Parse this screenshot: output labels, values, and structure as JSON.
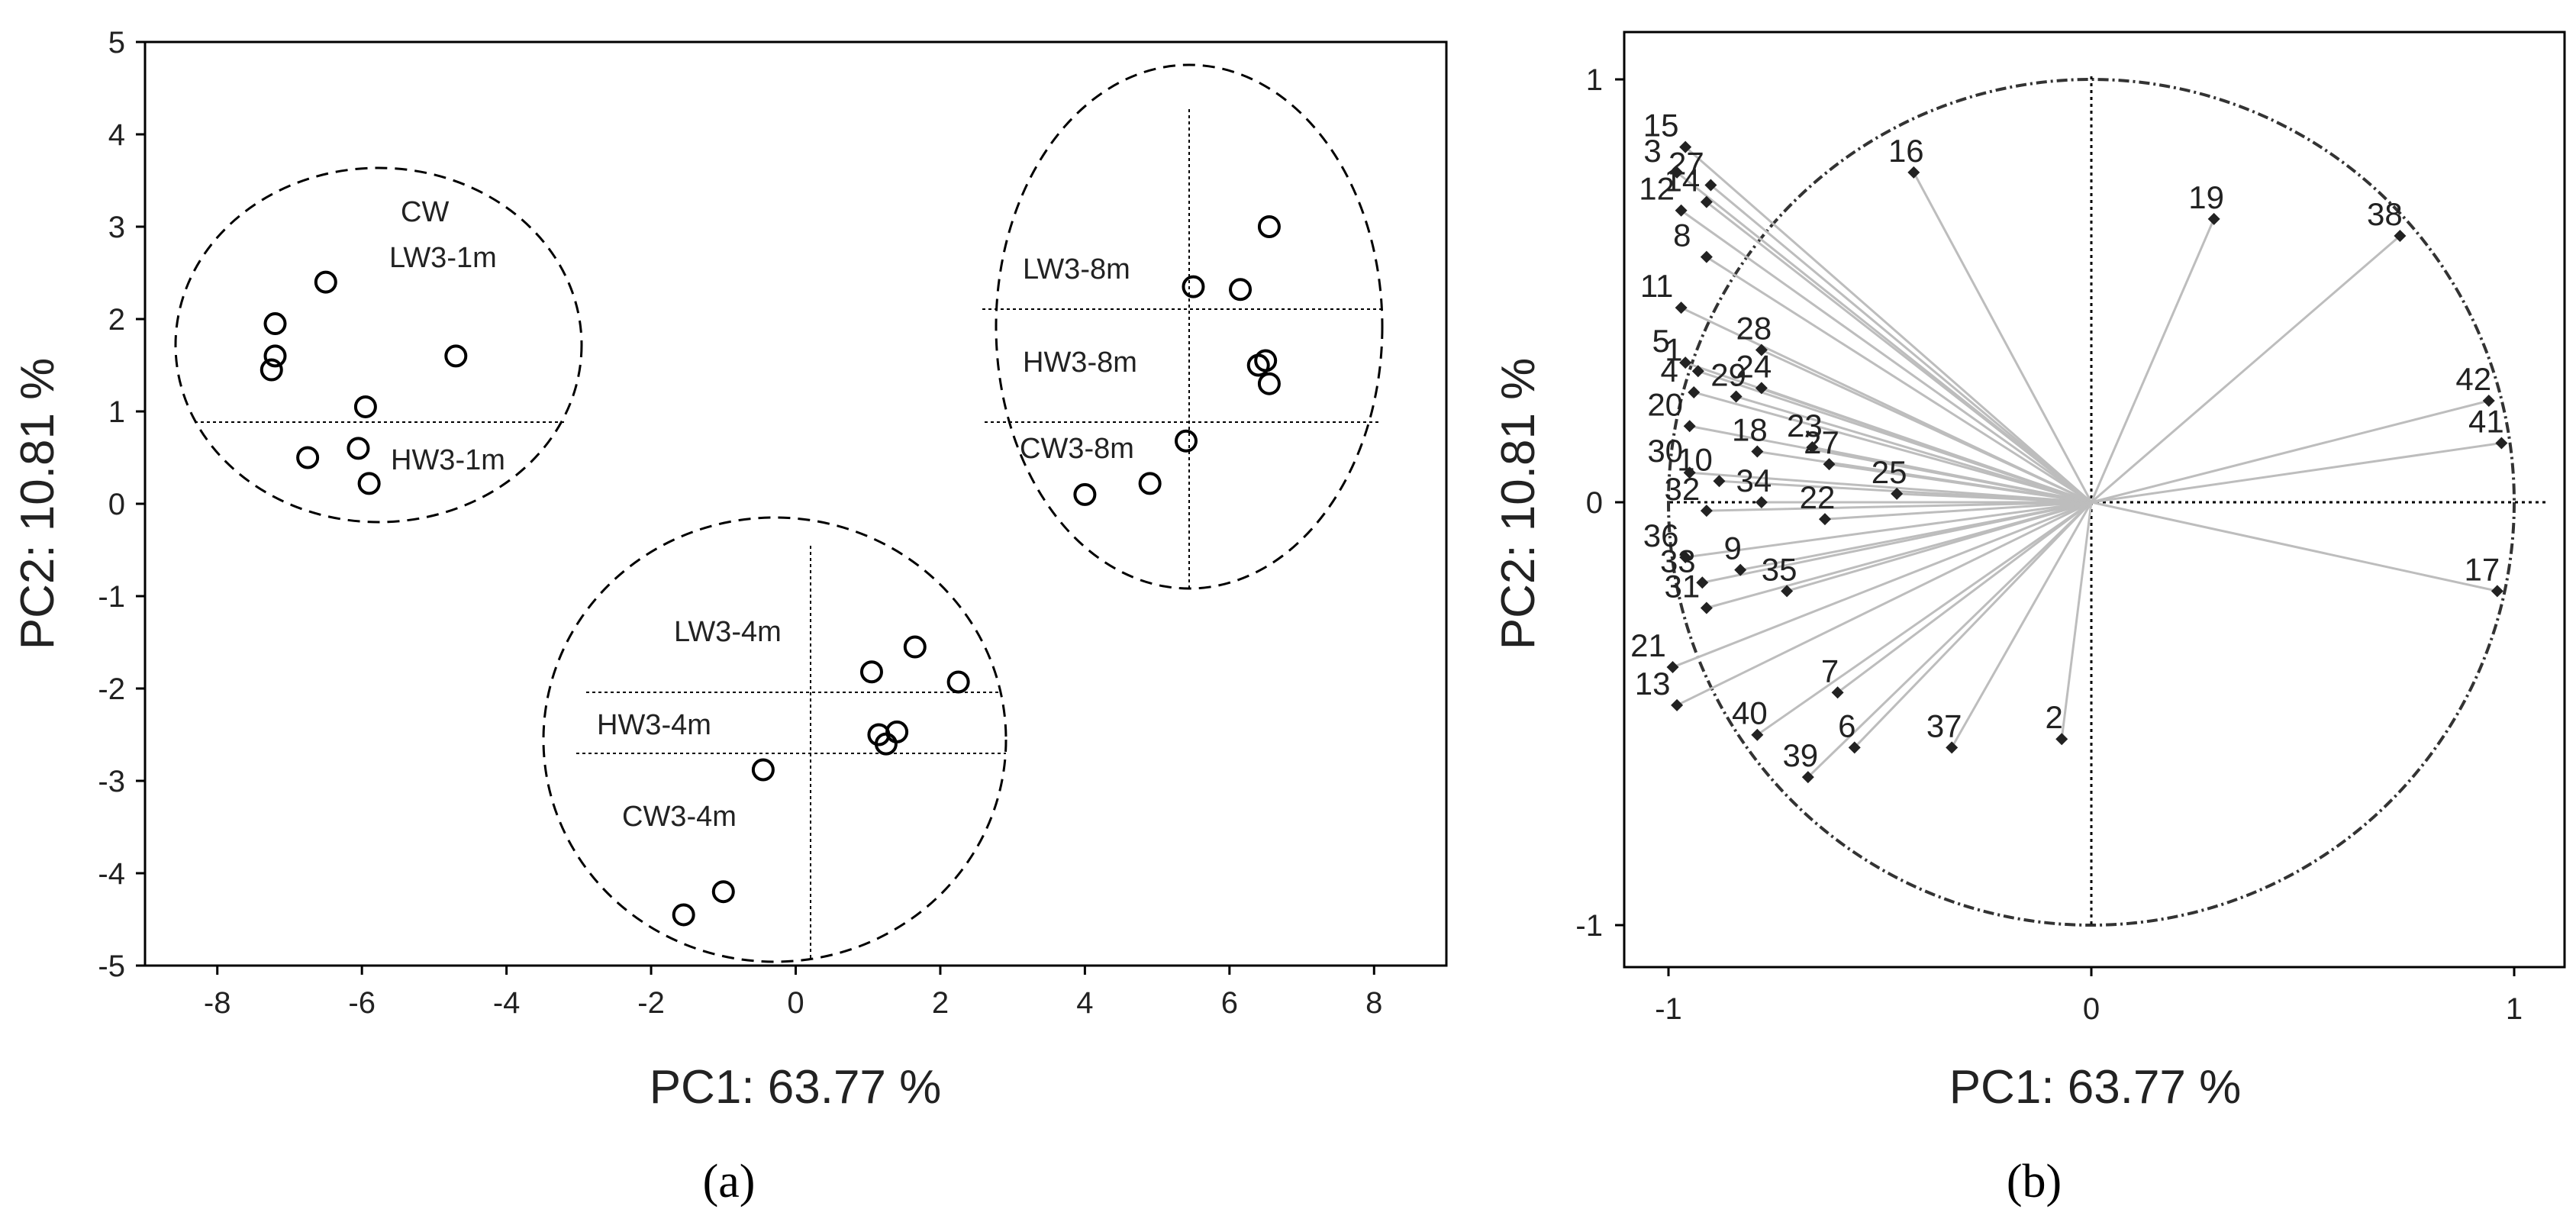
{
  "panels": [
    {
      "id": "a",
      "caption": "(a)",
      "chart_data": {
        "type": "scatter",
        "xlabel": "PC1: 63.77 %",
        "ylabel": "PC2: 10.81 %",
        "xlim": [
          -9,
          9
        ],
        "ylim": [
          -5,
          5
        ],
        "xticks": [
          -8,
          -6,
          -4,
          -2,
          0,
          2,
          4,
          6,
          8
        ],
        "yticks": [
          -5,
          -4,
          -3,
          -2,
          -1,
          0,
          1,
          2,
          3,
          4,
          5
        ],
        "marker": "open-circle",
        "points": [
          [
            -7.2,
            1.95
          ],
          [
            -7.2,
            1.6
          ],
          [
            -7.25,
            1.45
          ],
          [
            -6.5,
            2.4
          ],
          [
            -4.7,
            1.6
          ],
          [
            -5.95,
            1.05
          ],
          [
            -6.75,
            0.5
          ],
          [
            -6.05,
            0.6
          ],
          [
            -5.9,
            0.22
          ],
          [
            5.5,
            2.35
          ],
          [
            6.15,
            2.32
          ],
          [
            6.55,
            3.0
          ],
          [
            6.4,
            1.5
          ],
          [
            6.5,
            1.55
          ],
          [
            6.55,
            1.3
          ],
          [
            5.4,
            0.68
          ],
          [
            4.9,
            0.22
          ],
          [
            4.0,
            0.1
          ],
          [
            1.05,
            -1.82
          ],
          [
            1.65,
            -1.55
          ],
          [
            2.25,
            -1.93
          ],
          [
            1.15,
            -2.5
          ],
          [
            1.25,
            -2.6
          ],
          [
            1.4,
            -2.47
          ],
          [
            -0.45,
            -2.88
          ],
          [
            -1.0,
            -4.2
          ],
          [
            -1.55,
            -4.45
          ]
        ],
        "groups": [
          {
            "labels": [
              "CW",
              "LW3-1m",
              "HW3-1m"
            ]
          },
          {
            "labels": [
              "LW3-8m",
              "HW3-8m",
              "CW3-8m"
            ]
          },
          {
            "labels": [
              "LW3-4m",
              "HW3-4m",
              "CW3-4m"
            ]
          }
        ]
      }
    },
    {
      "id": "b",
      "caption": "(b)",
      "chart_data": {
        "type": "scatter",
        "xlabel": "PC1: 63.77 %",
        "ylabel": "PC2: 10.81 %",
        "xlim": [
          -1.1,
          1.1
        ],
        "ylim": [
          -1.1,
          1.1
        ],
        "xticks": [
          -1,
          0,
          1
        ],
        "yticks": [
          -1,
          0,
          1
        ],
        "marker": "diamond",
        "loadings": [
          {
            "label": "16",
            "x": -0.42,
            "y": 0.78
          },
          {
            "label": "19",
            "x": 0.29,
            "y": 0.67
          },
          {
            "label": "38",
            "x": 0.73,
            "y": 0.63
          },
          {
            "label": "42",
            "x": 0.94,
            "y": 0.24
          },
          {
            "label": "41",
            "x": 0.97,
            "y": 0.14
          },
          {
            "label": "17",
            "x": 0.96,
            "y": -0.21
          },
          {
            "label": "2",
            "x": -0.07,
            "y": -0.56
          },
          {
            "label": "37",
            "x": -0.33,
            "y": -0.58
          },
          {
            "label": "6",
            "x": -0.56,
            "y": -0.58
          },
          {
            "label": "39",
            "x": -0.67,
            "y": -0.65
          },
          {
            "label": "7",
            "x": -0.6,
            "y": -0.45
          },
          {
            "label": "40",
            "x": -0.79,
            "y": -0.55
          },
          {
            "label": "31",
            "x": -0.91,
            "y": -0.25
          },
          {
            "label": "33",
            "x": -0.92,
            "y": -0.19
          },
          {
            "label": "35",
            "x": -0.72,
            "y": -0.21
          },
          {
            "label": "9",
            "x": -0.83,
            "y": -0.16
          },
          {
            "label": "36",
            "x": -0.96,
            "y": -0.13
          },
          {
            "label": "32",
            "x": -0.91,
            "y": -0.02
          },
          {
            "label": "30",
            "x": -0.95,
            "y": 0.07
          },
          {
            "label": "34",
            "x": -0.78,
            "y": 0.0
          },
          {
            "label": "10",
            "x": -0.88,
            "y": 0.05
          },
          {
            "label": "22",
            "x": -0.63,
            "y": -0.04
          },
          {
            "label": "25",
            "x": -0.46,
            "y": 0.02
          },
          {
            "label": "27",
            "x": -0.62,
            "y": 0.09
          },
          {
            "label": "18",
            "x": -0.79,
            "y": 0.12
          },
          {
            "label": "23",
            "x": -0.66,
            "y": 0.13
          },
          {
            "label": "20",
            "x": -0.95,
            "y": 0.18
          },
          {
            "label": "24",
            "x": -0.78,
            "y": 0.27
          },
          {
            "label": "29",
            "x": -0.84,
            "y": 0.25
          },
          {
            "label": "28",
            "x": -0.78,
            "y": 0.36
          },
          {
            "label": "1",
            "x": -0.93,
            "y": 0.31
          },
          {
            "label": "4",
            "x": -0.94,
            "y": 0.26
          },
          {
            "label": "5",
            "x": -0.96,
            "y": 0.33
          },
          {
            "label": "11",
            "x": -0.97,
            "y": 0.46
          },
          {
            "label": "8",
            "x": -0.91,
            "y": 0.58
          },
          {
            "label": "12",
            "x": -0.97,
            "y": 0.69
          },
          {
            "label": "3",
            "x": -0.98,
            "y": 0.78
          },
          {
            "label": "14",
            "x": -0.91,
            "y": 0.71
          },
          {
            "label": "15",
            "x": -0.96,
            "y": 0.84
          },
          {
            "label": "27",
            "x": -0.9,
            "y": 0.75
          },
          {
            "label": "21",
            "x": -0.99,
            "y": -0.39
          },
          {
            "label": "13",
            "x": -0.98,
            "y": -0.48
          }
        ]
      }
    }
  ]
}
